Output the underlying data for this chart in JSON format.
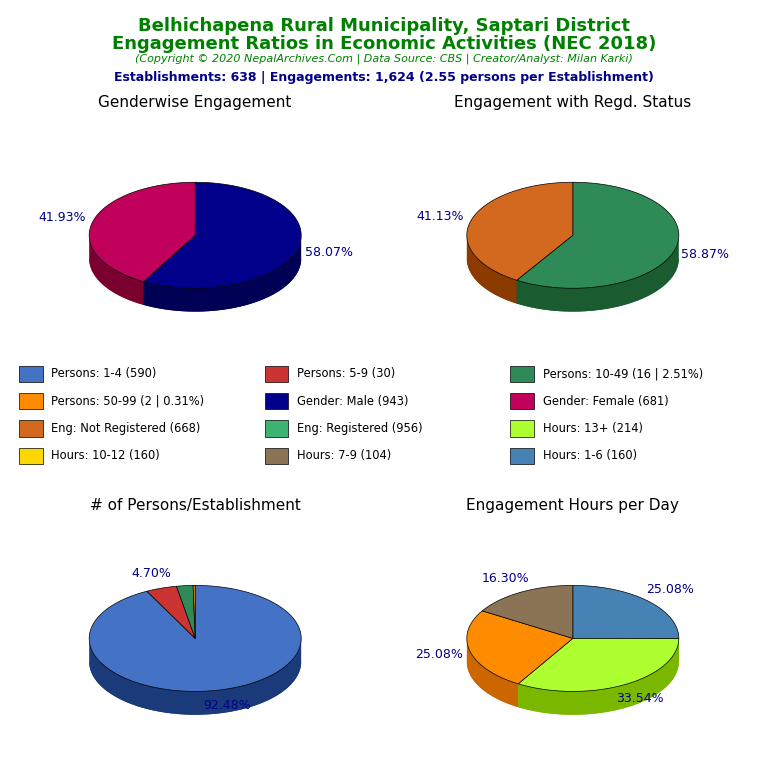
{
  "title_line1": "Belhichapena Rural Municipality, Saptari District",
  "title_line2": "Engagement Ratios in Economic Activities (NEC 2018)",
  "subtitle": "(Copyright © 2020 NepalArchives.Com | Data Source: CBS | Creator/Analyst: Milan Karki)",
  "stats_line": "Establishments: 638 | Engagements: 1,624 (2.55 persons per Establishment)",
  "title_color": "#008000",
  "subtitle_color": "#008000",
  "stats_color": "#00008B",
  "chart1_title": "Genderwise Engagement",
  "chart1_values": [
    58.07,
    41.93
  ],
  "chart1_colors": [
    "#00008B",
    "#C0005A"
  ],
  "chart1_shadow_colors": [
    "#000055",
    "#7A0030"
  ],
  "chart1_labels": [
    "58.07%",
    "41.93%"
  ],
  "chart2_title": "Engagement with Regd. Status",
  "chart2_values": [
    58.87,
    41.13
  ],
  "chart2_colors": [
    "#2E8B57",
    "#D2691E"
  ],
  "chart2_shadow_colors": [
    "#1A5C30",
    "#8B3A00"
  ],
  "chart2_labels": [
    "58.87%",
    "41.13%"
  ],
  "chart3_title": "# of Persons/Establishment",
  "chart3_values": [
    92.48,
    4.7,
    2.51,
    0.31
  ],
  "chart3_colors": [
    "#4472C4",
    "#CC3333",
    "#2E8B57",
    "#FF8C00"
  ],
  "chart3_shadow_colors": [
    "#1A3A7A",
    "#881111",
    "#1A5C30",
    "#CC6600"
  ],
  "chart3_labels": [
    "92.48%",
    "4.70%",
    "",
    ""
  ],
  "chart4_title": "Engagement Hours per Day",
  "chart4_values": [
    25.08,
    33.54,
    25.08,
    16.3
  ],
  "chart4_colors": [
    "#4682B4",
    "#ADFF2F",
    "#FF8C00",
    "#8B7355"
  ],
  "chart4_shadow_colors": [
    "#1A3A7A",
    "#7AB800",
    "#CC6600",
    "#5A4A30"
  ],
  "chart4_labels": [
    "25.08%",
    "33.54%",
    "25.08%",
    "16.30%"
  ],
  "legend_items": [
    {
      "label": "Persons: 1-4 (590)",
      "color": "#4472C4"
    },
    {
      "label": "Persons: 5-9 (30)",
      "color": "#CC3333"
    },
    {
      "label": "Persons: 10-49 (16 | 2.51%)",
      "color": "#2E8B57"
    },
    {
      "label": "Persons: 50-99 (2 | 0.31%)",
      "color": "#FF8C00"
    },
    {
      "label": "Gender: Male (943)",
      "color": "#00008B"
    },
    {
      "label": "Gender: Female (681)",
      "color": "#C0005A"
    },
    {
      "label": "Eng: Not Registered (668)",
      "color": "#D2691E"
    },
    {
      "label": "Eng: Registered (956)",
      "color": "#3CB371"
    },
    {
      "label": "Hours: 13+ (214)",
      "color": "#ADFF2F"
    },
    {
      "label": "Hours: 10-12 (160)",
      "color": "#FFD700"
    },
    {
      "label": "Hours: 7-9 (104)",
      "color": "#8B7355"
    },
    {
      "label": "Hours: 1-6 (160)",
      "color": "#4682B4"
    }
  ]
}
